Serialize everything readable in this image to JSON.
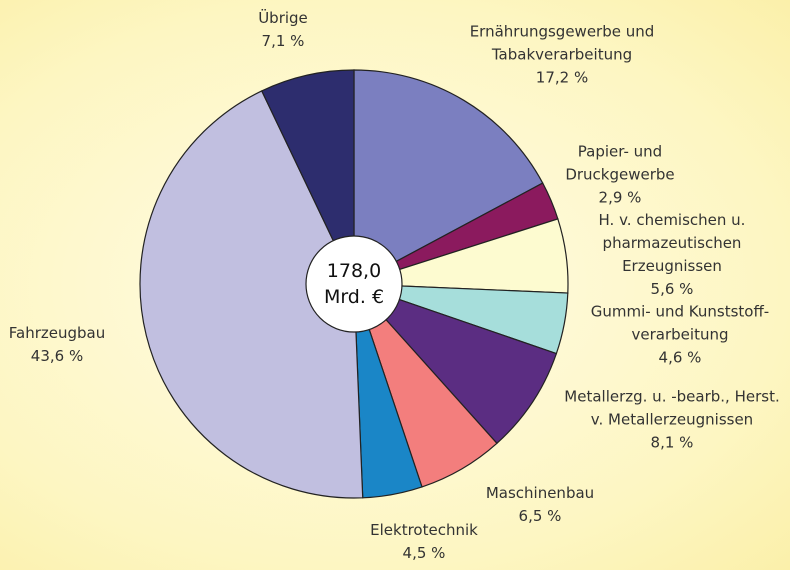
{
  "chart_data": {
    "type": "pie",
    "annotation": "178,0\nMrd. €",
    "categories": [
      "Ernährungsgewerbe und\nTabakverarbeitung",
      "Papier- und\nDruckgewerbe",
      "H. v. chemischen u.\npharmazeutischen\nErzeugnissen",
      "Gummi- und Kunststoff-\nverarbeitung",
      "Metallerzg. u. -bearb., Herst.\nv. Metallerzeugnissen",
      "Maschinenbau",
      "Elektrotechnik",
      "Fahrzeugbau",
      "Übrige"
    ],
    "values": [
      17.2,
      2.9,
      5.6,
      4.6,
      8.1,
      6.5,
      4.5,
      43.6,
      7.1
    ],
    "value_labels": [
      "17,2 %",
      "2,9 %",
      "5,6 %",
      "4,6 %",
      "8,1 %",
      "6,5 %",
      "4,5 %",
      "43,6 %",
      "7,1 %"
    ],
    "colors": [
      "#7b7fc0",
      "#8b1a5e",
      "#fdfbd0",
      "#a6dedb",
      "#5b2d82",
      "#f37e7d",
      "#1a86c7",
      "#c1bfe0",
      "#2d2d6e"
    ]
  }
}
